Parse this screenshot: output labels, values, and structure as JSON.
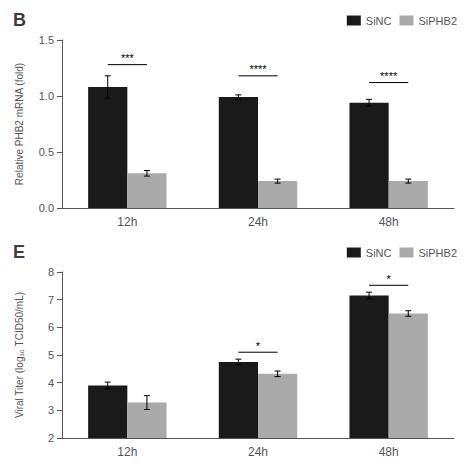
{
  "chart_data": [
    {
      "type": "bar",
      "title": "B",
      "categories": [
        "12h",
        "24h",
        "48h"
      ],
      "series": [
        {
          "name": "SiNC",
          "color": "#1a1a1a",
          "values": [
            1.08,
            0.99,
            0.94
          ],
          "errors": [
            0.1,
            0.02,
            0.03
          ]
        },
        {
          "name": "SiPHB2",
          "color": "#aaaaaa",
          "values": [
            0.31,
            0.24,
            0.24
          ],
          "errors": [
            0.025,
            0.018,
            0.018
          ]
        }
      ],
      "ylabel": "Relative PHB2 mRNA (fold)",
      "ylim": [
        0,
        1.5
      ],
      "yticks": [
        {
          "value": 0.0,
          "label": "0.0"
        },
        0.5,
        {
          "value": 1.0,
          "label": "1.0"
        },
        1.5
      ],
      "annotations": [
        {
          "category": "12h",
          "y": 1.28,
          "text": "***"
        },
        {
          "category": "24h",
          "y": 1.18,
          "text": "****"
        },
        {
          "category": "48h",
          "y": 1.12,
          "text": "****"
        }
      ],
      "legend": "upper right",
      "grid": false
    },
    {
      "type": "bar",
      "title": "E",
      "categories": [
        "12h",
        "24h",
        "48h"
      ],
      "series": [
        {
          "name": "SiNC",
          "color": "#1a1a1a",
          "values": [
            3.9,
            4.75,
            7.15
          ],
          "errors": [
            0.12,
            0.1,
            0.12
          ]
        },
        {
          "name": "SiPHB2",
          "color": "#aaaaaa",
          "values": [
            3.28,
            4.32,
            6.5
          ],
          "errors": [
            0.25,
            0.1,
            0.1
          ]
        }
      ],
      "ylabel": "Viral Titer (log₁₀ TCID50/mL)",
      "ylim": [
        2,
        8
      ],
      "yticks": [
        2,
        3,
        4,
        5,
        6,
        7,
        8
      ],
      "annotations": [
        {
          "category": "24h",
          "y": 5.1,
          "text": "*"
        },
        {
          "category": "48h",
          "y": 7.52,
          "text": "*"
        }
      ],
      "legend": "upper right",
      "grid": false
    }
  ]
}
